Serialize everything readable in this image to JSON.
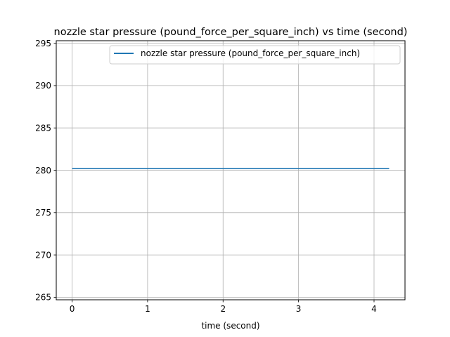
{
  "chart_data": {
    "type": "line",
    "title": "nozzle star pressure (pound_force_per_square_inch) vs time (second)",
    "xlabel": "time (second)",
    "ylabel": "",
    "xlim": [
      -0.21,
      4.41
    ],
    "ylim": [
      264.7,
      295.3
    ],
    "xticks": [
      0,
      1,
      2,
      3,
      4
    ],
    "yticks": [
      265,
      270,
      275,
      280,
      285,
      290,
      295
    ],
    "grid": true,
    "legend_position": "top-right",
    "series": [
      {
        "name": "nozzle star pressure (pound_force_per_square_inch)",
        "color": "#1f77b4",
        "x": [
          0,
          4.2
        ],
        "y": [
          280.2,
          280.2
        ]
      }
    ]
  }
}
